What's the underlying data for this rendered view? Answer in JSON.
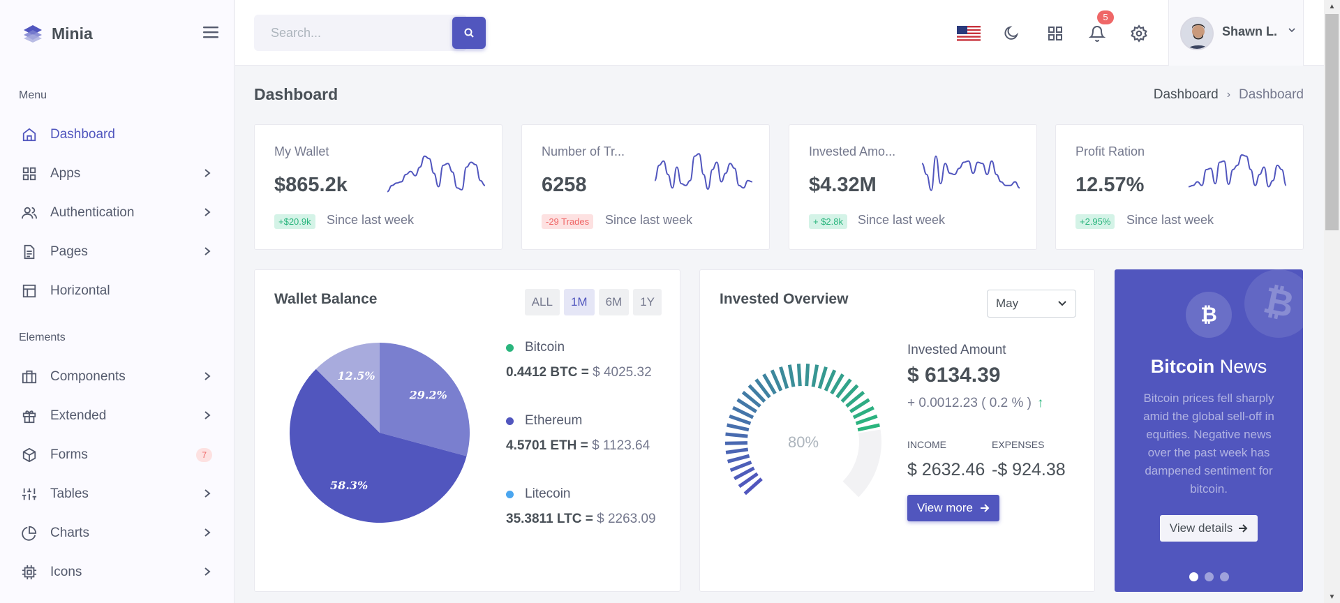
{
  "brand": {
    "name": "Minia"
  },
  "sidebar": {
    "section_menu": "Menu",
    "section_elements": "Elements",
    "items": [
      {
        "label": "Dashboard",
        "icon": "home-icon"
      },
      {
        "label": "Apps",
        "icon": "grid-icon"
      },
      {
        "label": "Authentication",
        "icon": "users-icon"
      },
      {
        "label": "Pages",
        "icon": "file-text-icon"
      },
      {
        "label": "Horizontal",
        "icon": "layout-icon"
      },
      {
        "label": "Components",
        "icon": "briefcase-icon"
      },
      {
        "label": "Extended",
        "icon": "gift-icon"
      },
      {
        "label": "Forms",
        "icon": "box-icon",
        "badge": "7"
      },
      {
        "label": "Tables",
        "icon": "sliders-icon"
      },
      {
        "label": "Charts",
        "icon": "pie-chart-icon"
      },
      {
        "label": "Icons",
        "icon": "cpu-icon"
      }
    ]
  },
  "topbar": {
    "search_placeholder": "Search...",
    "notifications_count": "5",
    "user_name": "Shawn L."
  },
  "page": {
    "title": "Dashboard",
    "breadcrumb": [
      "Dashboard",
      "Dashboard"
    ]
  },
  "stats": [
    {
      "title": "My Wallet",
      "value": "$865.2k",
      "change": "+$20.9k",
      "direction": "up",
      "since": "Since last week",
      "spark": [
        12,
        22,
        26,
        28,
        40,
        45,
        38,
        52,
        70,
        66,
        42,
        20,
        55,
        58,
        44,
        18,
        15,
        52,
        60,
        56,
        30,
        22
      ]
    },
    {
      "title": "Number of Tr...",
      "value": "6258",
      "change": "-29 Trades",
      "direction": "down",
      "since": "Since last week",
      "spark": [
        30,
        55,
        62,
        40,
        18,
        52,
        25,
        22,
        30,
        70,
        74,
        40,
        16,
        48,
        60,
        28,
        42,
        58,
        50,
        22,
        18,
        30,
        28
      ]
    },
    {
      "title": "Invested Amo...",
      "value": "$4.32M",
      "change": "+ $2.8k",
      "direction": "up",
      "since": "Since last week",
      "spark": [
        58,
        40,
        14,
        70,
        25,
        58,
        42,
        40,
        50,
        60,
        62,
        42,
        60,
        58,
        40,
        62,
        40,
        28,
        22,
        22,
        28,
        18
      ]
    },
    {
      "title": "Profit Ration",
      "value": "12.57%",
      "change": "+2.95%",
      "direction": "up",
      "since": "Since last week",
      "spark": [
        20,
        22,
        28,
        22,
        48,
        50,
        25,
        60,
        62,
        24,
        48,
        55,
        72,
        70,
        48,
        22,
        40,
        52,
        20,
        30,
        55,
        48,
        22
      ]
    }
  ],
  "wallet": {
    "title": "Wallet Balance",
    "filters": [
      "ALL",
      "1M",
      "6M",
      "1Y"
    ],
    "active_filter": "1M",
    "coins": [
      {
        "name": "Bitcoin",
        "amount": "0.4412 BTC =",
        "usd": "$ 4025.32",
        "color": "#2ab57d"
      },
      {
        "name": "Ethereum",
        "amount": "4.5701 ETH =",
        "usd": "$ 1123.64",
        "color": "#5156be"
      },
      {
        "name": "Litecoin",
        "amount": "35.3811 LTC =",
        "usd": "$ 2263.09",
        "color": "#4ba6ef"
      }
    ]
  },
  "invested": {
    "title": "Invested Overview",
    "month": "May",
    "gauge_label": "80%",
    "label": "Invested Amount",
    "amount": "$ 6134.39",
    "change": "+ 0.0012.23 ( 0.2 % )",
    "income_label": "INCOME",
    "income_value": "$ 2632.46",
    "expenses_label": "EXPENSES",
    "expenses_value": "-$ 924.38",
    "button": "View more"
  },
  "news": {
    "title_bold": "Bitcoin",
    "title_rest": "News",
    "body": "Bitcoin prices fell sharply amid the global sell-off in equities. Negative news over the past week has dampened sentiment for bitcoin.",
    "button": "View details"
  },
  "chart_data": [
    {
      "type": "pie",
      "title": "Wallet Balance",
      "categories": [
        "Ethereum",
        "Bitcoin",
        "Litecoin"
      ],
      "values": [
        58.3,
        29.2,
        12.5
      ],
      "labels": [
        "58.3%",
        "29.2%",
        "12.5%"
      ],
      "colors": [
        "#5156be",
        "#7a7fcf",
        "#a8abdd"
      ]
    },
    {
      "type": "gauge",
      "title": "Invested Overview",
      "value": 80,
      "max": 100,
      "label": "80%"
    }
  ]
}
